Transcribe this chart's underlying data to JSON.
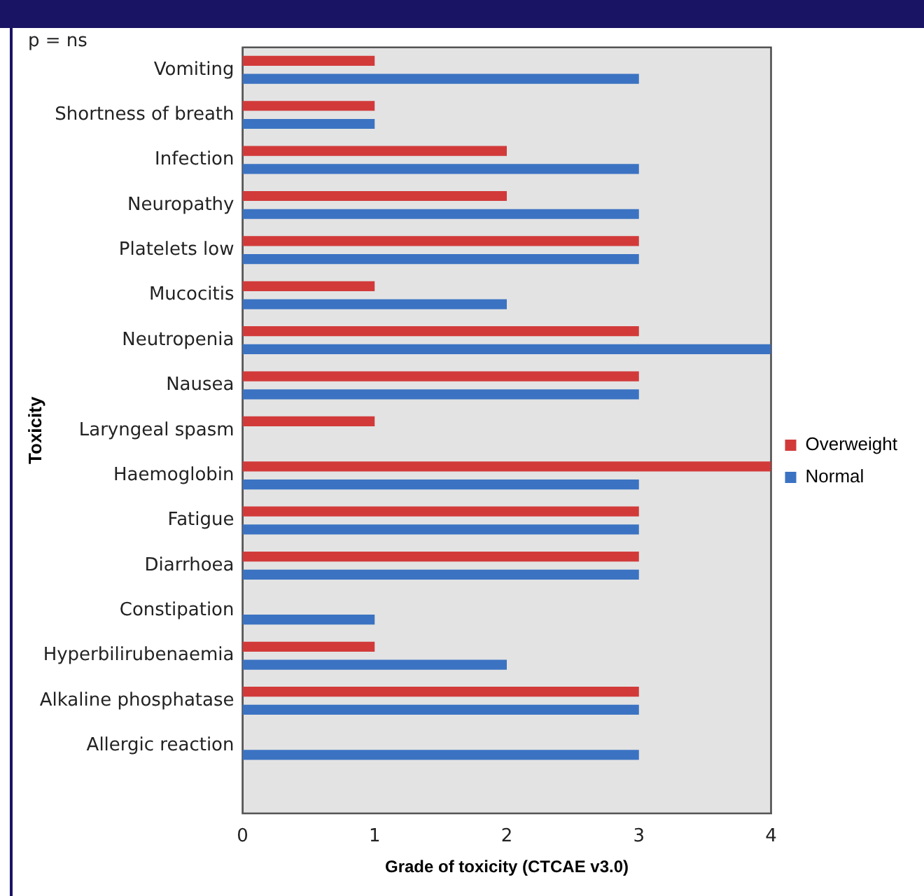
{
  "chart_data": {
    "type": "bar",
    "orientation": "horizontal",
    "categories": [
      "Vomiting",
      "Shortness of breath",
      "Infection",
      "Neuropathy",
      "Platelets low",
      "Mucocitis",
      "Neutropenia",
      "Nausea",
      "Laryngeal spasm",
      "Haemoglobin",
      "Fatigue",
      "Diarrhoea",
      "Constipation",
      "Hyperbilirubenaemia",
      "Alkaline phosphatase",
      "Allergic reaction",
      null
    ],
    "series": [
      {
        "name": "Overweight",
        "color": "#d23a3a",
        "values": [
          1,
          1,
          2,
          2,
          3,
          1,
          3,
          3,
          1,
          4,
          3,
          3,
          null,
          1,
          3,
          null,
          null
        ]
      },
      {
        "name": "Normal",
        "color": "#3b73c2",
        "values": [
          3,
          1,
          3,
          3,
          3,
          2,
          4,
          3,
          null,
          3,
          3,
          3,
          1,
          2,
          3,
          3,
          null
        ]
      }
    ],
    "xlim": [
      0,
      4
    ],
    "xticks": [
      0,
      1,
      2,
      3,
      4
    ],
    "xlabel": "Grade of toxicity (CTCAE v3.0)",
    "ylabel": "Toxicity",
    "annotations": [
      "p = ns"
    ],
    "legend": "right",
    "grid": false
  }
}
